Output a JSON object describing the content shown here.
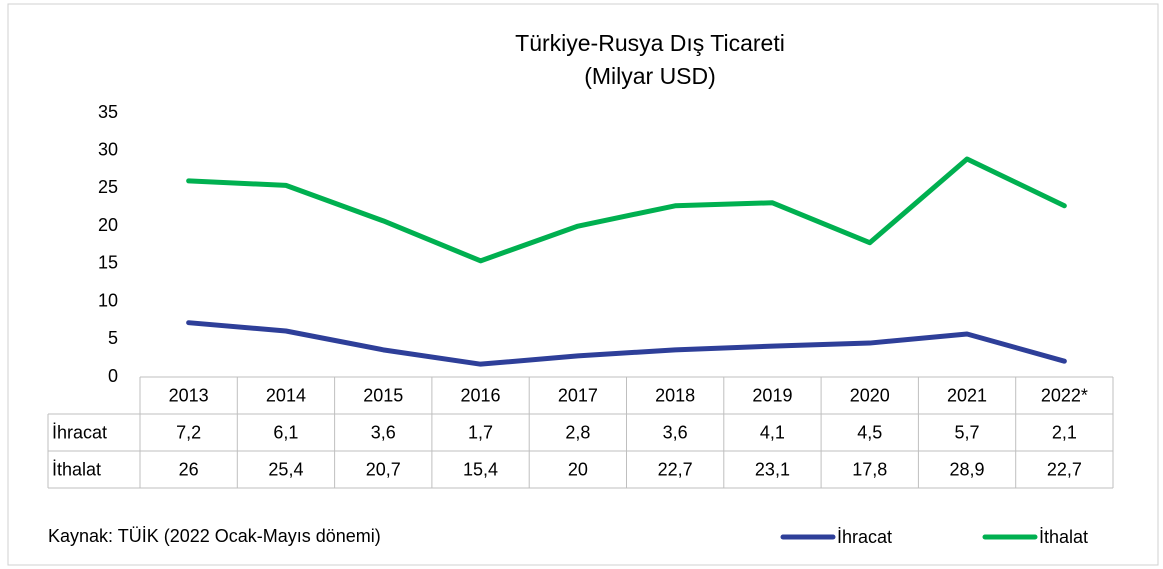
{
  "chart_data": {
    "type": "line",
    "title": "Türkiye-Rusya Dış Ticareti",
    "subtitle": "(Milyar USD)",
    "source": "Kaynak: TÜİK (2022 Ocak-Mayıs dönemi)",
    "categories": [
      "2013",
      "2014",
      "2015",
      "2016",
      "2017",
      "2018",
      "2019",
      "2020",
      "2021",
      "2022*"
    ],
    "series": [
      {
        "name": "İhracat",
        "color": "#2e3f99",
        "values": [
          7.2,
          6.1,
          3.6,
          1.7,
          2.8,
          3.6,
          4.1,
          4.5,
          5.7,
          2.1
        ],
        "value_labels": [
          "7,2",
          "6,1",
          "3,6",
          "1,7",
          "2,8",
          "3,6",
          "4,1",
          "4,5",
          "5,7",
          "2,1"
        ]
      },
      {
        "name": "İthalat",
        "color": "#00b050",
        "values": [
          26,
          25.4,
          20.7,
          15.4,
          20,
          22.7,
          23.1,
          17.8,
          28.9,
          22.7
        ],
        "value_labels": [
          "26",
          "25,4",
          "20,7",
          "15,4",
          "20",
          "22,7",
          "23,1",
          "17,8",
          "28,9",
          "22,7"
        ]
      }
    ],
    "ylim": [
      0,
      35
    ],
    "yticks": [
      0,
      5,
      10,
      15,
      20,
      25,
      30,
      35
    ],
    "grid": false,
    "legend": "bottom-right"
  }
}
